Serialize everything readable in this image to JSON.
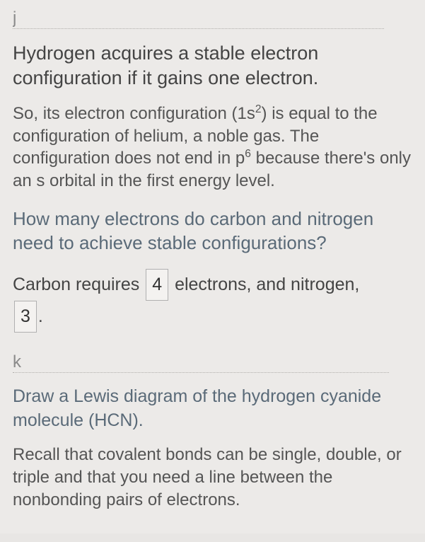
{
  "section_j": {
    "label": "j",
    "heading": "Hydrogen acquires a stable electron configuration if it gains one electron.",
    "para_pre": "So, its electron configuration (1s",
    "sup1": "2",
    "para_mid1": ") is equal to the configuration of helium, a noble gas. The configuration does not end in p",
    "sup2": "6",
    "para_post": " because there's only an s orbital in the first energy level.",
    "question": "How many electrons do carbon and nitrogen need to achieve stable configurations?",
    "ans_pre": "Carbon requires ",
    "ans_box1": "4",
    "ans_mid": " electrons, and nitrogen, ",
    "ans_box2": "3",
    "ans_post": "."
  },
  "section_k": {
    "label": "k",
    "prompt": "Draw a Lewis diagram of the hydrogen cyanide molecule (HCN).",
    "para": "Recall that covalent bonds can be single, double, or triple and that you need a line between the nonbonding pairs of electrons."
  },
  "style": {
    "bg": "#eceae8",
    "text": "#3a3a3a",
    "muted": "#8a8a8a",
    "question_color": "#5a6a78",
    "box_border": "#b0b0b0",
    "box_bg": "#f4f2f0",
    "heading_fs": 27,
    "para_fs": 24,
    "question_fs": 26,
    "answer_fs": 25
  }
}
